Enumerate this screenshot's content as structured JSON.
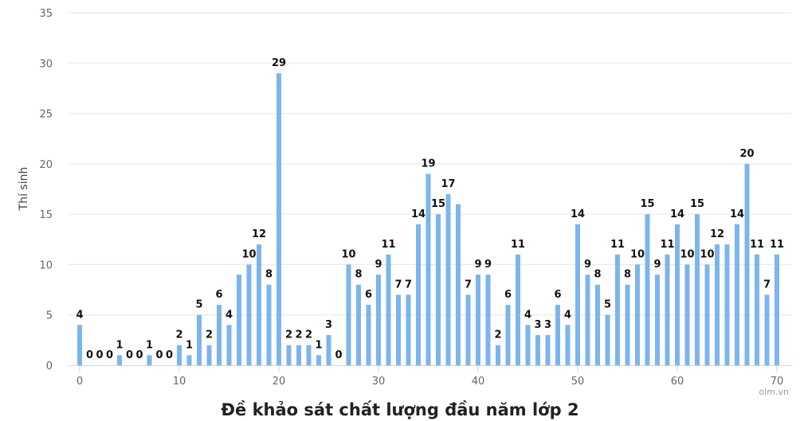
{
  "chart_data": {
    "type": "bar",
    "title": "Đề khảo sát chất lượng đầu năm lớp 2",
    "ylabel": "Thí sinh",
    "xlabel": "",
    "credit": "olm.vn",
    "xlim": [
      0,
      70
    ],
    "ylim": [
      0,
      35
    ],
    "x_ticks": [
      0,
      10,
      20,
      30,
      40,
      50,
      60,
      70
    ],
    "y_ticks": [
      0,
      5,
      10,
      15,
      20,
      25,
      30,
      35
    ],
    "grid": true,
    "bar_color": "#7cb5ec",
    "x": [
      0,
      1,
      2,
      3,
      4,
      5,
      6,
      7,
      8,
      9,
      10,
      11,
      12,
      13,
      14,
      15,
      16,
      17,
      18,
      19,
      20,
      21,
      22,
      23,
      24,
      25,
      26,
      27,
      28,
      29,
      30,
      31,
      32,
      33,
      34,
      35,
      36,
      37,
      38,
      39,
      40,
      41,
      42,
      43,
      44,
      45,
      46,
      47,
      48,
      49,
      50,
      51,
      52,
      53,
      54,
      55,
      56,
      57,
      58,
      59,
      60,
      61,
      62,
      63,
      64,
      65,
      66,
      67,
      68,
      69,
      70
    ],
    "values": [
      4,
      0,
      0,
      0,
      1,
      0,
      0,
      1,
      0,
      0,
      2,
      1,
      5,
      2,
      6,
      4,
      9,
      10,
      12,
      8,
      29,
      2,
      2,
      2,
      1,
      3,
      0,
      10,
      8,
      6,
      9,
      11,
      7,
      7,
      14,
      19,
      15,
      17,
      16,
      7,
      9,
      9,
      2,
      6,
      11,
      4,
      3,
      3,
      6,
      4,
      14,
      9,
      8,
      5,
      11,
      8,
      10,
      15,
      9,
      11,
      14,
      10,
      15,
      10,
      12,
      12,
      14,
      20,
      11,
      7,
      11
    ],
    "labels": [
      "4",
      "0",
      "0",
      "0",
      "1",
      "0",
      "0",
      "1",
      "0",
      "0",
      "2",
      "1",
      "5",
      "2",
      "6",
      "4",
      "",
      "10",
      "12",
      "8",
      "29",
      "2",
      "2",
      "2",
      "1",
      "3",
      "0",
      "10",
      "8",
      "6",
      "9",
      "11",
      "7",
      "7",
      "14",
      "19",
      "15",
      "17",
      "",
      "7",
      "9",
      "9",
      "2",
      "6",
      "11",
      "4",
      "3",
      "3",
      "6",
      "4",
      "14",
      "9",
      "8",
      "5",
      "11",
      "8",
      "10",
      "15",
      "9",
      "11",
      "14",
      "10",
      "15",
      "10",
      "12",
      "",
      "14",
      "20",
      "11",
      "7",
      "11"
    ]
  }
}
